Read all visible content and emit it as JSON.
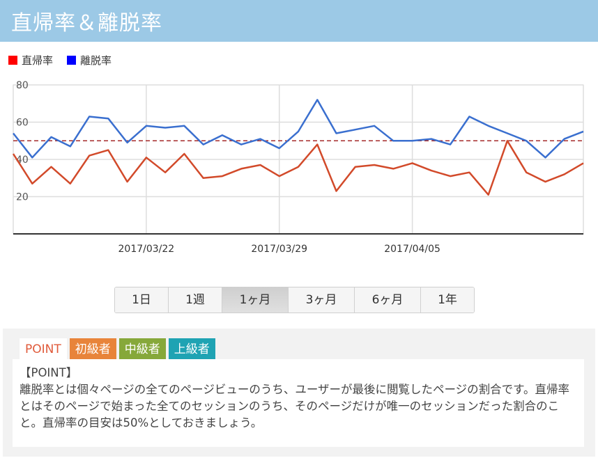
{
  "header": {
    "title": "直帰率＆離脱率"
  },
  "legend": [
    {
      "label": "直帰率",
      "color": "#ff0000"
    },
    {
      "label": "離脱率",
      "color": "#0000ff"
    }
  ],
  "chart_data": {
    "type": "line",
    "x_labels": [
      "2017/03/22",
      "2017/03/29",
      "2017/04/05"
    ],
    "y_ticks": [
      20,
      40,
      60,
      80
    ],
    "ylim": [
      0,
      80
    ],
    "reference_line": 50,
    "reference_color": "#a52a2a",
    "grid": true,
    "series": [
      {
        "name": "直帰率",
        "color": "#d24a2a",
        "values": [
          43,
          27,
          36,
          27,
          42,
          45,
          28,
          41,
          33,
          43,
          30,
          31,
          35,
          37,
          31,
          36,
          48,
          23,
          36,
          37,
          35,
          38,
          34,
          31,
          33,
          21,
          50,
          33,
          28,
          32,
          38
        ]
      },
      {
        "name": "離脱率",
        "color": "#3a6fcf",
        "values": [
          54,
          41,
          52,
          47,
          63,
          62,
          49,
          58,
          57,
          58,
          48,
          53,
          48,
          51,
          46,
          55,
          72,
          54,
          56,
          58,
          50,
          50,
          51,
          48,
          63,
          58,
          54,
          50,
          41,
          51,
          55
        ]
      }
    ]
  },
  "ranges": [
    {
      "label": "1日",
      "active": false
    },
    {
      "label": "1週",
      "active": false
    },
    {
      "label": "1ヶ月",
      "active": true
    },
    {
      "label": "3ヶ月",
      "active": false
    },
    {
      "label": "6ヶ月",
      "active": false
    },
    {
      "label": "1年",
      "active": false
    }
  ],
  "tabs": {
    "point": "POINT",
    "beginner": "初級者",
    "intermediate": "中級者",
    "advanced": "上級者"
  },
  "content": {
    "heading": "【POINT】",
    "body": "離脱率とは個々ページの全てのページビューのうち、ユーザーが最後に閲覧したページの割合です。直帰率とはそのページで始まった全てのセッションのうち、そのページだけが唯一のセッションだった割合のこと。直帰率の目安は50%としておきましょう。"
  }
}
